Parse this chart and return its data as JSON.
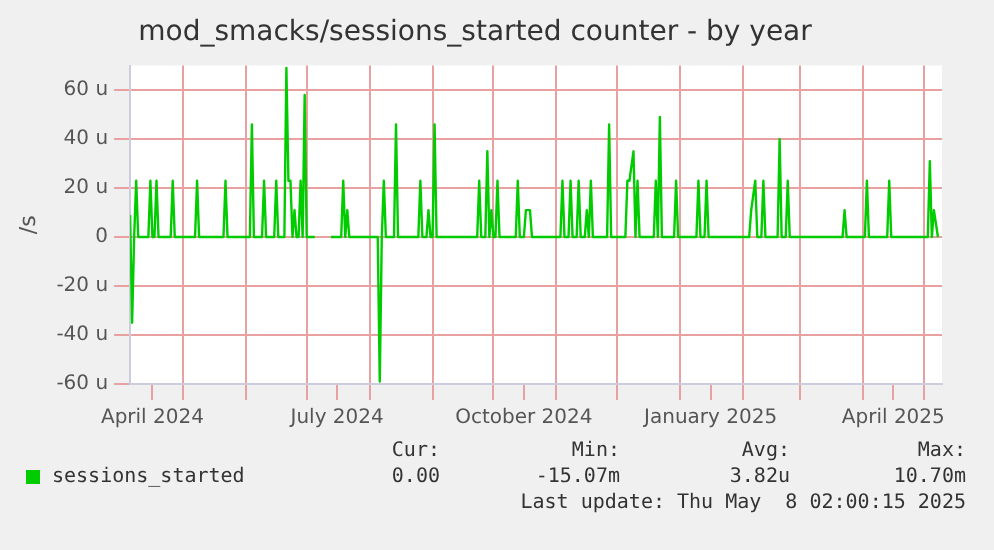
{
  "chart_data": {
    "type": "line",
    "title": "mod_smacks/sessions_started counter - by year",
    "ylabel": "/s",
    "x": [
      "2024-04-05",
      "2024-04-06",
      "2024-04-07",
      "2024-04-08",
      "2024-04-09",
      "2024-04-14",
      "2024-04-15",
      "2024-04-16",
      "2024-04-17",
      "2024-04-18",
      "2024-04-19",
      "2024-04-25",
      "2024-04-26",
      "2024-04-27",
      "2024-05-07",
      "2024-05-08",
      "2024-05-09",
      "2024-05-21",
      "2024-05-22",
      "2024-05-23",
      "2024-06-03",
      "2024-06-04",
      "2024-06-05",
      "2024-06-09",
      "2024-06-10",
      "2024-06-11",
      "2024-06-15",
      "2024-06-16",
      "2024-06-17",
      "2024-06-20",
      "2024-06-21",
      "2024-06-22",
      "2024-06-23",
      "2024-06-24",
      "2024-06-25",
      "2024-06-26",
      "2024-06-27",
      "2024-06-28",
      "2024-06-29",
      "2024-06-30",
      "2024-07-01",
      "2024-07-05",
      "2024-07-09",
      "2024-07-13",
      "2024-07-18",
      "2024-07-19",
      "2024-07-20",
      "2024-07-21",
      "2024-07-22",
      "2024-08-05",
      "2024-08-06",
      "2024-08-07",
      "2024-08-08",
      "2024-08-09",
      "2024-08-13",
      "2024-08-14",
      "2024-08-15",
      "2024-08-25",
      "2024-08-26",
      "2024-08-27",
      "2024-08-29",
      "2024-08-30",
      "2024-08-31",
      "2024-09-01",
      "2024-09-02",
      "2024-09-03",
      "2024-09-23",
      "2024-09-24",
      "2024-09-25",
      "2024-09-27",
      "2024-09-28",
      "2024-09-29",
      "2024-09-30",
      "2024-10-01",
      "2024-10-02",
      "2024-10-03",
      "2024-10-04",
      "2024-10-12",
      "2024-10-13",
      "2024-10-14",
      "2024-10-16",
      "2024-10-17",
      "2024-10-19",
      "2024-10-20",
      "2024-11-03",
      "2024-11-04",
      "2024-11-05",
      "2024-11-07",
      "2024-11-08",
      "2024-11-09",
      "2024-11-11",
      "2024-11-12",
      "2024-11-13",
      "2024-11-15",
      "2024-11-16",
      "2024-11-17",
      "2024-11-18",
      "2024-11-19",
      "2024-11-26",
      "2024-11-27",
      "2024-11-28",
      "2024-12-05",
      "2024-12-06",
      "2024-12-07",
      "2024-12-09",
      "2024-12-10",
      "2024-12-11",
      "2024-12-12",
      "2024-12-19",
      "2024-12-20",
      "2024-12-21",
      "2024-12-22",
      "2024-12-23",
      "2024-12-29",
      "2024-12-30",
      "2024-12-31",
      "2025-01-09",
      "2025-01-10",
      "2025-01-11",
      "2025-01-13",
      "2025-01-14",
      "2025-01-15",
      "2025-02-04",
      "2025-02-05",
      "2025-02-07",
      "2025-02-08",
      "2025-02-10",
      "2025-02-11",
      "2025-02-12",
      "2025-02-18",
      "2025-02-19",
      "2025-02-20",
      "2025-02-22",
      "2025-02-23",
      "2025-02-24",
      "2025-03-22",
      "2025-03-23",
      "2025-03-24",
      "2025-04-02",
      "2025-04-03",
      "2025-04-04",
      "2025-04-13",
      "2025-04-14",
      "2025-04-15",
      "2025-05-03",
      "2025-05-04",
      "2025-05-05",
      "2025-05-06",
      "2025-05-08"
    ],
    "series": [
      {
        "name": "sessions_started",
        "color": "#00cc00",
        "values": [
          9,
          -35,
          0,
          23,
          0,
          0,
          23,
          0,
          0,
          23,
          0,
          0,
          23,
          0,
          0,
          23,
          0,
          0,
          23,
          0,
          0,
          46,
          0,
          0,
          23,
          0,
          0,
          23,
          0,
          0,
          69,
          23,
          23,
          0,
          11,
          0,
          0,
          23,
          0,
          58,
          0,
          0,
          null,
          0,
          0,
          23,
          0,
          11,
          0,
          0,
          -59,
          0,
          23,
          0,
          0,
          46,
          0,
          0,
          23,
          0,
          0,
          11,
          0,
          0,
          46,
          0,
          0,
          23,
          0,
          0,
          35,
          0,
          11,
          0,
          0,
          23,
          0,
          0,
          23,
          0,
          0,
          11,
          11,
          0,
          0,
          23,
          0,
          0,
          23,
          0,
          0,
          23,
          0,
          0,
          11,
          0,
          23,
          0,
          0,
          46,
          0,
          0,
          23,
          23,
          35,
          0,
          23,
          0,
          0,
          23,
          0,
          49,
          0,
          0,
          23,
          0,
          0,
          23,
          0,
          0,
          23,
          0,
          0,
          11,
          23,
          0,
          0,
          23,
          0,
          0,
          40,
          0,
          0,
          23,
          0,
          0,
          11,
          0,
          0,
          23,
          0,
          0,
          23,
          0,
          0,
          31,
          0,
          11,
          0
        ]
      }
    ],
    "xlim": [
      "2024-04-05",
      "2025-05-10"
    ],
    "xticks": [
      {
        "value": "2024-04-16",
        "label": "April 2024"
      },
      {
        "value": "2024-05-01",
        "label": null
      },
      {
        "value": "2024-06-01",
        "label": null
      },
      {
        "value": "2024-07-01",
        "label": null
      },
      {
        "value": "2024-07-16",
        "label": "July 2024"
      },
      {
        "value": "2024-08-01",
        "label": null
      },
      {
        "value": "2024-09-01",
        "label": null
      },
      {
        "value": "2024-10-01",
        "label": null
      },
      {
        "value": "2024-10-16",
        "label": "October 2024"
      },
      {
        "value": "2024-11-01",
        "label": null
      },
      {
        "value": "2024-12-01",
        "label": null
      },
      {
        "value": "2025-01-01",
        "label": null
      },
      {
        "value": "2025-01-16",
        "label": "January 2025"
      },
      {
        "value": "2025-02-01",
        "label": null
      },
      {
        "value": "2025-03-01",
        "label": null
      },
      {
        "value": "2025-04-01",
        "label": null
      },
      {
        "value": "2025-04-16",
        "label": "April 2025"
      },
      {
        "value": "2025-05-01",
        "label": null
      }
    ],
    "ylim": [
      -60,
      70
    ],
    "yticks": [
      {
        "value": -60,
        "label": "-60 u"
      },
      {
        "value": -40,
        "label": "-40 u"
      },
      {
        "value": -20,
        "label": "-20 u"
      },
      0,
      {
        "value": 20,
        "label": "20 u"
      },
      {
        "value": 40,
        "label": "40 u"
      },
      {
        "value": 60,
        "label": "60 u"
      }
    ],
    "grid": true,
    "legend": "bottom left",
    "marker": "none",
    "line_style": "solid",
    "annotations": [
      "Cur:",
      "Min:",
      "Avg:",
      "Max:",
      "0.00",
      "-15.07m",
      "3.82u",
      "10.70m",
      "Last update: Thu May  8 02:00:15 2025"
    ]
  }
}
